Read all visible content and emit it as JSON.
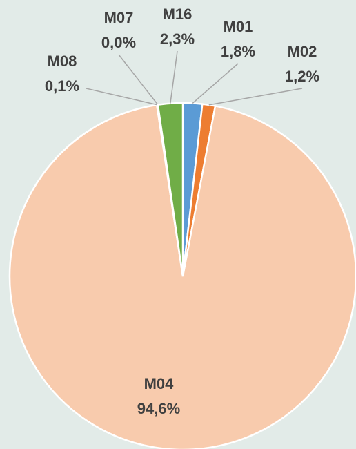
{
  "chart_data": {
    "type": "pie",
    "categories": [
      "M01",
      "M02",
      "M04",
      "M08",
      "M07",
      "M16"
    ],
    "values": [
      1.8,
      1.2,
      94.6,
      0.1,
      0.0,
      2.3
    ],
    "value_labels": [
      "1,8%",
      "1,2%",
      "94,6%",
      "0,1%",
      "0,0%",
      "2,3%"
    ],
    "colors": [
      "#5b9bd5",
      "#ed7d31",
      "#f8cbad",
      "#a5a5a5",
      "#ffc000",
      "#70ad47"
    ]
  }
}
